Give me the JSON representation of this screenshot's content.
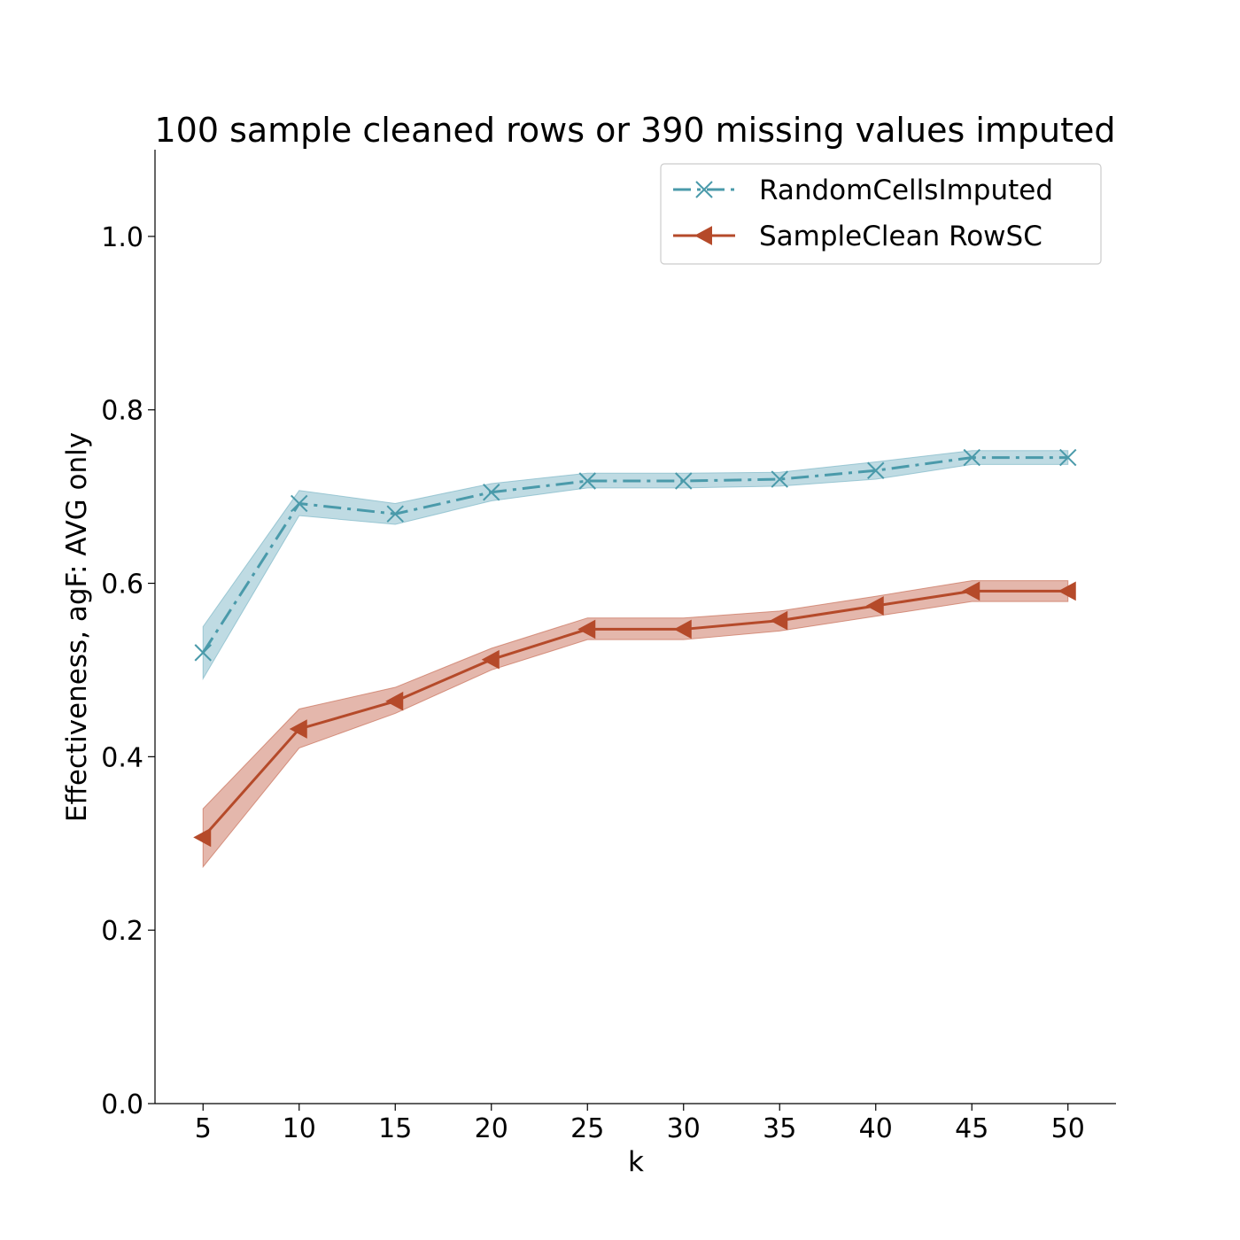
{
  "chart_data": {
    "type": "line",
    "title": "100 sample cleaned rows or 390 missing values imputed",
    "xlabel": "k",
    "ylabel": "Effectiveness, agF: AVG only",
    "x": [
      5,
      10,
      15,
      20,
      25,
      30,
      35,
      40,
      45,
      50
    ],
    "xlim": [
      2.5,
      52.5
    ],
    "ylim": [
      0.0,
      1.1
    ],
    "xticks": [
      5,
      10,
      15,
      20,
      25,
      30,
      35,
      40,
      45,
      50
    ],
    "yticks": [
      0.0,
      0.2,
      0.4,
      0.6,
      0.8,
      1.0
    ],
    "ytick_labels": [
      "0.0",
      "0.2",
      "0.4",
      "0.6",
      "0.8",
      "1.0"
    ],
    "grid": false,
    "legend_position": "top-right",
    "series": [
      {
        "name": "RandomCellsImputed",
        "color": "#4a9aaa",
        "band_color": "#7fb8c8",
        "linestyle": "dashdot",
        "marker": "x",
        "values": [
          0.52,
          0.692,
          0.68,
          0.705,
          0.718,
          0.718,
          0.72,
          0.73,
          0.745,
          0.745
        ],
        "lower": [
          0.49,
          0.678,
          0.668,
          0.695,
          0.71,
          0.71,
          0.712,
          0.72,
          0.737,
          0.737
        ],
        "upper": [
          0.55,
          0.707,
          0.692,
          0.715,
          0.727,
          0.727,
          0.728,
          0.74,
          0.753,
          0.753
        ]
      },
      {
        "name": "SampleClean RowSC",
        "color": "#b54a2a",
        "band_color": "#c9705a",
        "linestyle": "solid",
        "marker": "triangle-left",
        "values": [
          0.307,
          0.432,
          0.464,
          0.512,
          0.547,
          0.547,
          0.557,
          0.574,
          0.591,
          0.591
        ],
        "lower": [
          0.273,
          0.41,
          0.45,
          0.5,
          0.535,
          0.535,
          0.545,
          0.562,
          0.579,
          0.579
        ],
        "upper": [
          0.34,
          0.455,
          0.48,
          0.525,
          0.56,
          0.56,
          0.568,
          0.585,
          0.603,
          0.603
        ]
      }
    ]
  }
}
